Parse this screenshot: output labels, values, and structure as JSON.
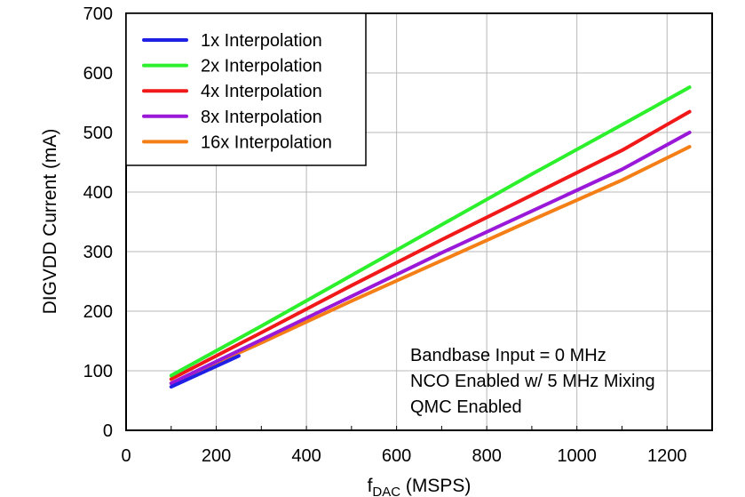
{
  "chart_data": {
    "type": "line",
    "title": "",
    "xlabel_main": "f",
    "xlabel_sub": "DAC",
    "xlabel_unit": " (MSPS)",
    "ylabel": "DIGVDD Current (mA)",
    "xlim": [
      0,
      1300
    ],
    "ylim": [
      0,
      700
    ],
    "xticks": [
      0,
      200,
      400,
      600,
      800,
      1000,
      1200
    ],
    "yticks": [
      0,
      100,
      200,
      300,
      400,
      500,
      600,
      700
    ],
    "grid": true,
    "legend_position": "top-left",
    "series": [
      {
        "name": "1x Interpolation",
        "color": "#1f1fe6",
        "x": [
          100,
          250
        ],
        "y": [
          73,
          125
        ]
      },
      {
        "name": "2x Interpolation",
        "color": "#2cf02c",
        "x": [
          100,
          300,
          500,
          700,
          900,
          1100,
          1250
        ],
        "y": [
          92,
          175,
          260,
          345,
          430,
          513,
          576
        ]
      },
      {
        "name": "4x Interpolation",
        "color": "#f01818",
        "x": [
          100,
          300,
          500,
          700,
          900,
          1100,
          1250
        ],
        "y": [
          86,
          164,
          243,
          320,
          395,
          470,
          535
        ]
      },
      {
        "name": "8x Interpolation",
        "color": "#9a18d8",
        "x": [
          100,
          300,
          500,
          700,
          900,
          1100,
          1250
        ],
        "y": [
          79,
          152,
          225,
          298,
          368,
          438,
          500
        ]
      },
      {
        "name": "16x Interpolation",
        "color": "#f57f17",
        "x": [
          100,
          300,
          500,
          700,
          900,
          1100,
          1250
        ],
        "y": [
          79,
          147,
          217,
          285,
          353,
          420,
          476
        ]
      }
    ],
    "annotations": [
      "Bandbase Input =  0 MHz",
      "NCO Enabled w/ 5 MHz Mixing",
      "QMC Enabled"
    ]
  }
}
